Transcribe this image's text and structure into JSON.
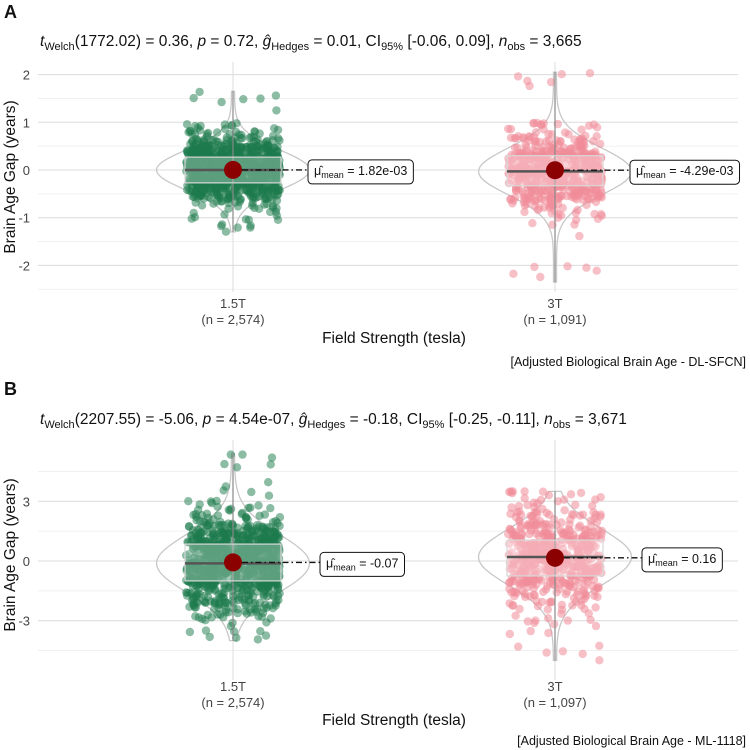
{
  "chart_data": [
    {
      "panel": "A",
      "type": "violin-box-jitter",
      "subtitle_stat": {
        "test_sub": "Welch",
        "df": "(1772.02)",
        "t": "0.36",
        "p": "0.72",
        "hedges_g_sub": "Hedges",
        "g": "0.01",
        "ci_label": "CI",
        "ci_sub": "95%",
        "ci": "[-0.06, 0.09]",
        "n_sub": "obs",
        "n_obs": "3,665"
      },
      "xlabel": "Field Strength (tesla)",
      "ylabel": "Brain Age Gap (years)",
      "ylim": [
        -2.6,
        2.1
      ],
      "yticks": [
        2,
        1,
        0,
        -1,
        -2
      ],
      "caption": "[Adjusted Biological Brain Age - DL-SFCN]",
      "groups": [
        {
          "name": "1.5T",
          "n_label": "(n = 2,574)",
          "color": "#1b7a4b",
          "mean": 0.00182,
          "mean_label_sub": "mean",
          "mean_text": "1.82e-03",
          "median": 0.0,
          "q1": -0.27,
          "q3": 0.27,
          "min": -1.3,
          "max": 1.65
        },
        {
          "name": "3T",
          "n_label": "(n = 1,091)",
          "color": "#f08c99",
          "mean": -0.00429,
          "mean_label_sub": "mean",
          "mean_text": "-4.29e-03",
          "median": -0.03,
          "q1": -0.33,
          "q3": 0.3,
          "min": -2.35,
          "max": 2.05
        }
      ]
    },
    {
      "panel": "B",
      "type": "violin-box-jitter",
      "subtitle_stat": {
        "test_sub": "Welch",
        "df": "(2207.55)",
        "t": "-5.06",
        "p": "4.54e-07",
        "hedges_g_sub": "Hedges",
        "g": "-0.18",
        "ci_label": "CI",
        "ci_sub": "95%",
        "ci": "[-0.25, -0.11]",
        "n_sub": "obs",
        "n_obs": "3,671"
      },
      "xlabel": "Field Strength (tesla)",
      "ylabel": "Brain Age Gap (years)",
      "ylim": [
        -5.0,
        5.3
      ],
      "yticks": [
        3,
        0,
        -3
      ],
      "caption": "[Adjusted Biological Brain Age - ML-1118]",
      "groups": [
        {
          "name": "1.5T",
          "n_label": "(n = 2,574)",
          "color": "#1b7a4b",
          "mean": -0.07,
          "mean_label_sub": "mean",
          "mean_text": "-0.07",
          "median": -0.12,
          "q1": -1.0,
          "q3": 0.85,
          "min": -4.0,
          "max": 5.4
        },
        {
          "name": "3T",
          "n_label": "(n = 1,097)",
          "color": "#f08c99",
          "mean": 0.16,
          "mean_label_sub": "mean",
          "mean_text": "0.16",
          "median": 0.2,
          "q1": -0.75,
          "q3": 1.05,
          "min": -5.0,
          "max": 3.5
        }
      ]
    }
  ]
}
